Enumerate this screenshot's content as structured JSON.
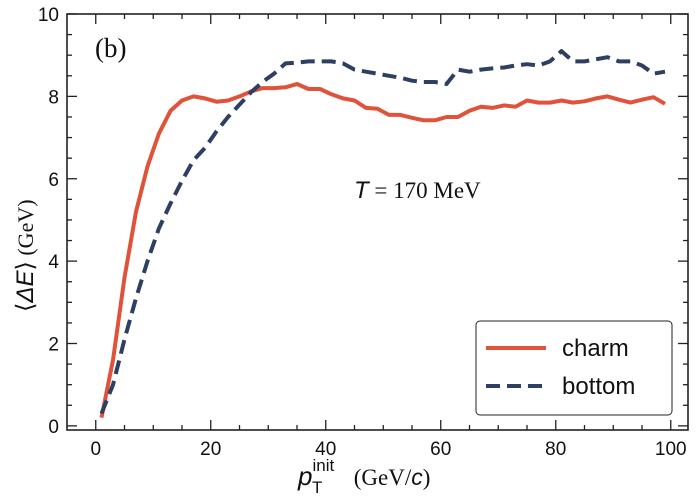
{
  "chart_data": {
    "type": "line",
    "panel_label": "(b)",
    "annotation": {
      "symbol": "T",
      "text": " = 170 MeV"
    },
    "xlabel": {
      "var": "p",
      "sub": "T",
      "sup": "init",
      "unit_pre": " (GeV/",
      "unit_var": "c",
      "unit_post": ")"
    },
    "ylabel": {
      "open": "⟨",
      "var": "ΔE",
      "close": "⟩",
      "unit": " (GeV)"
    },
    "xlim": [
      -5,
      103
    ],
    "ylim": [
      -0.1,
      10
    ],
    "xticks": [
      "0",
      "20",
      "40",
      "60",
      "80",
      "100"
    ],
    "yticks": [
      "0",
      "2",
      "4",
      "6",
      "8",
      "10"
    ],
    "series": [
      {
        "name": "charm",
        "color": "#e0533a",
        "style": "solid",
        "x": [
          1,
          3,
          5,
          7,
          9,
          11,
          13,
          15,
          17,
          19,
          21,
          23,
          25,
          27,
          29,
          31,
          33,
          35,
          37,
          39,
          41,
          43,
          45,
          47,
          49,
          51,
          53,
          55,
          57,
          59,
          61,
          63,
          65,
          67,
          69,
          71,
          73,
          75,
          77,
          79,
          81,
          83,
          85,
          87,
          89,
          91,
          93,
          95,
          97,
          99
        ],
        "values": [
          0.2,
          1.6,
          3.6,
          5.2,
          6.3,
          7.1,
          7.65,
          7.9,
          8.0,
          7.95,
          7.87,
          7.9,
          8.0,
          8.12,
          8.2,
          8.2,
          8.22,
          8.3,
          8.18,
          8.18,
          8.05,
          7.95,
          7.9,
          7.72,
          7.7,
          7.55,
          7.55,
          7.48,
          7.42,
          7.42,
          7.5,
          7.5,
          7.65,
          7.75,
          7.72,
          7.78,
          7.75,
          7.9,
          7.85,
          7.85,
          7.9,
          7.85,
          7.88,
          7.95,
          8.0,
          7.92,
          7.85,
          7.92,
          7.98,
          7.82
        ]
      },
      {
        "name": "bottom",
        "color": "#2d3f62",
        "style": "dashed",
        "x": [
          1,
          3,
          5,
          7,
          9,
          11,
          13,
          15,
          17,
          19,
          21,
          23,
          25,
          27,
          29,
          31,
          33,
          35,
          37,
          39,
          41,
          43,
          45,
          47,
          49,
          51,
          53,
          55,
          57,
          59,
          61,
          63,
          65,
          67,
          69,
          71,
          73,
          75,
          77,
          79,
          81,
          83,
          85,
          87,
          89,
          91,
          93,
          95,
          97,
          99
        ],
        "values": [
          0.3,
          1.0,
          2.1,
          3.1,
          4.0,
          4.8,
          5.4,
          5.95,
          6.45,
          6.75,
          7.15,
          7.5,
          7.8,
          8.1,
          8.35,
          8.55,
          8.8,
          8.82,
          8.85,
          8.85,
          8.85,
          8.8,
          8.65,
          8.6,
          8.55,
          8.5,
          8.45,
          8.38,
          8.35,
          8.35,
          8.3,
          8.65,
          8.6,
          8.65,
          8.68,
          8.7,
          8.75,
          8.78,
          8.75,
          8.85,
          9.1,
          8.85,
          8.85,
          8.9,
          8.95,
          8.85,
          8.85,
          8.75,
          8.55,
          8.6
        ]
      }
    ],
    "legend": {
      "position": "bottom-right",
      "entries": [
        "charm",
        "bottom"
      ]
    }
  }
}
